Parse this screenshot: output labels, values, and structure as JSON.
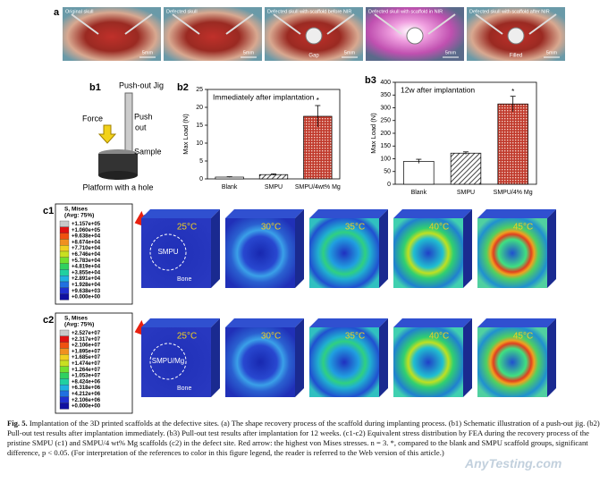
{
  "panel_a": {
    "label": "a",
    "photos": [
      {
        "title": "Original skull",
        "scale": "5mm"
      },
      {
        "title": "Defected skull",
        "scale": "5mm"
      },
      {
        "title": "Defected skull with scaffold before NIR",
        "scale": "5mm",
        "note": "Gap"
      },
      {
        "title": "Defected skull with scaffold in NIR",
        "scale": "5mm"
      },
      {
        "title": "Defected skull with scaffold after NIR",
        "scale": "5mm",
        "note": "Filled"
      }
    ]
  },
  "panel_b1": {
    "label": "b1",
    "title": "Push-out Jig",
    "force": "Force",
    "push": "Push",
    "out": "out",
    "sample": "Sample",
    "platform": "Platform with a hole"
  },
  "chart_data": [
    {
      "type": "bar",
      "label": "b2",
      "title": "Immediately after implantation",
      "y_label": "Max Load (N)",
      "categories": [
        "Blank",
        "SMPU",
        "SMPU/4wt% Mg"
      ],
      "values": [
        0.5,
        1.2,
        17.5
      ],
      "errors": [
        0.1,
        0.2,
        3
      ],
      "colors": [
        "#ffffff",
        "#555555",
        "#c0392b"
      ],
      "significance": "*",
      "ylim": [
        0,
        25
      ],
      "yticks": [
        0,
        5,
        10,
        15,
        20,
        25
      ]
    },
    {
      "type": "bar",
      "label": "b3",
      "title": "12w after implantation",
      "y_label": "Max Load (N)",
      "categories": [
        "Blank",
        "SMPU",
        "SMPU/4% Mg"
      ],
      "values": [
        90,
        122,
        315
      ],
      "errors": [
        8,
        5,
        30
      ],
      "colors": [
        "#ffffff",
        "#555555",
        "#c0392b"
      ],
      "significance": "*",
      "ylim": [
        0,
        400
      ],
      "yticks": [
        0,
        50,
        100,
        150,
        200,
        250,
        300,
        350,
        400
      ]
    }
  ],
  "panel_c": [
    {
      "label": "c1",
      "legend_title": "S, Mises",
      "legend_avg": "(Avg: 75%)",
      "legend_values": [
        "+1.157e+05",
        "+1.060e+05",
        "+9.638e+04",
        "+8.674e+04",
        "+7.710e+04",
        "+6.746e+04",
        "+5.783e+04",
        "+4.819e+04",
        "+3.855e+04",
        "+2.891e+04",
        "+1.928e+04",
        "+9.638e+03",
        "+0.000e+00"
      ],
      "temperatures": [
        "25°C",
        "30°C",
        "35°C",
        "40°C",
        "45°C"
      ],
      "scaffold": "SMPU",
      "bone": "Bone"
    },
    {
      "label": "c2",
      "legend_title": "S, Mises",
      "legend_avg": "(Avg: 75%)",
      "legend_values": [
        "+2.527e+07",
        "+2.317e+07",
        "+2.106e+07",
        "+1.895e+07",
        "+1.685e+07",
        "+1.474e+07",
        "+1.264e+07",
        "+1.053e+07",
        "+8.424e+06",
        "+6.318e+06",
        "+4.212e+06",
        "+2.106e+06",
        "+0.000e+00"
      ],
      "temperatures": [
        "25°C",
        "30°C",
        "35°C",
        "40°C",
        "45°C"
      ],
      "scaffold": "SMPU/Mg",
      "bone": "Bone"
    }
  ],
  "caption": {
    "label": "Fig. 5.",
    "text": "Implantation of the 3D printed scaffolds at the defective sites. (a) The shape recovery process of the scaffold during implanting process. (b1) Schematic illustration of a push-out jig. (b2) Pull-out test results after implantation immediately. (b3) Pull-out test results after implantation for 12 weeks. (c1-c2) Equivalent stress distribution by FEA during the recovery process of the pristine SMPU (c1) and SMPU/4 wt% Mg scaffolds (c2) in the defect site. Red arrow: the highest von Mises stresses. n = 3. *, compared to the blank and SMPU scaffold groups, significant difference, p < 0.05. (For interpretation of the references to color in this figure legend, the reader is referred to the Web version of this article.)"
  },
  "watermark": "AnyTesting.com"
}
